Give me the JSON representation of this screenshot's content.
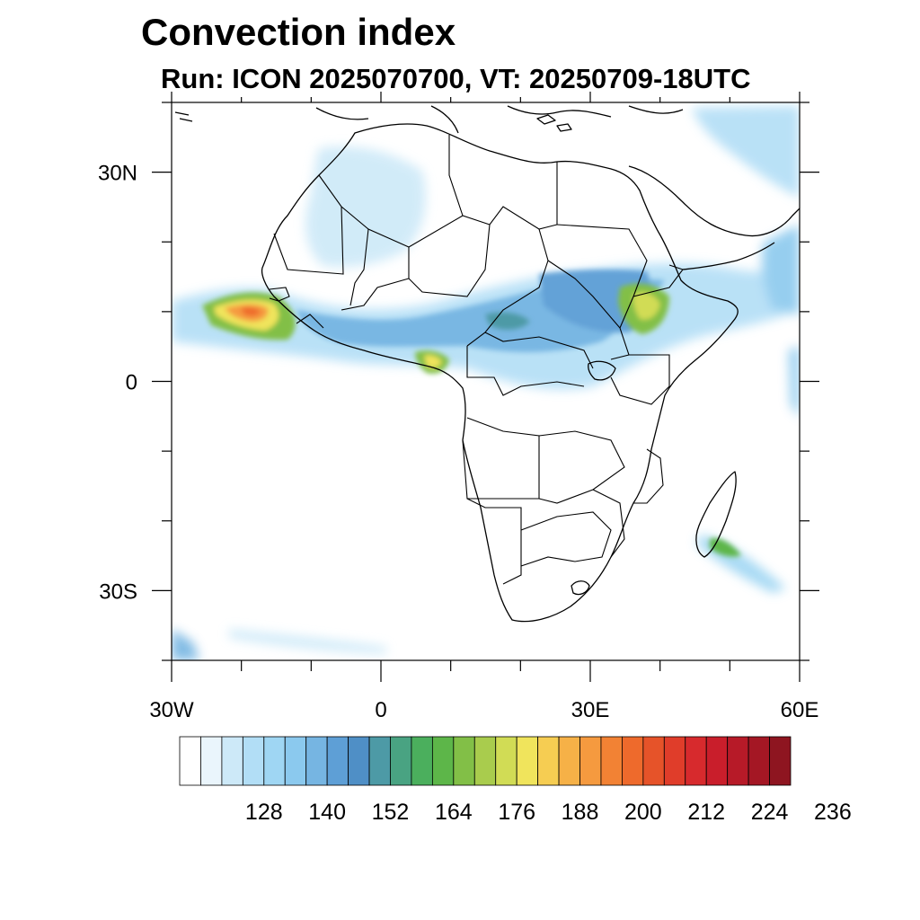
{
  "title": "Convection index",
  "subtitle": "Run: ICON 2025070700,  VT: 20250709-18UTC",
  "map": {
    "lon_range": [
      -30,
      60
    ],
    "lat_range": [
      -40,
      40
    ],
    "x_ticks": [
      {
        "value": -30,
        "label": "30W"
      },
      {
        "value": 0,
        "label": "0"
      },
      {
        "value": 30,
        "label": "30E"
      },
      {
        "value": 60,
        "label": "60E"
      }
    ],
    "y_ticks": [
      {
        "value": 30,
        "label": "30N"
      },
      {
        "value": 0,
        "label": "0"
      },
      {
        "value": -30,
        "label": "30S"
      }
    ],
    "minor_lon_step": 10,
    "minor_lat_step": 10
  },
  "colorbar": {
    "colors": [
      "#ffffff",
      "#eaf5fc",
      "#cde9f8",
      "#b2def6",
      "#9fd6f3",
      "#8bc9ee",
      "#76b5e2",
      "#5e9fd6",
      "#4f8fc6",
      "#4d9aa6",
      "#49a382",
      "#4baf5d",
      "#5db649",
      "#82bf47",
      "#a9cc4d",
      "#d1dc55",
      "#f0e45c",
      "#f6cd52",
      "#f6b147",
      "#f59a3f",
      "#f28234",
      "#ee6a2c",
      "#e65329",
      "#e03d2a",
      "#d72a2d",
      "#c91e2b",
      "#b71a28",
      "#a41724",
      "#8e1520"
    ],
    "labels": [
      "128",
      "140",
      "152",
      "164",
      "176",
      "188",
      "200",
      "212",
      "224",
      "236"
    ],
    "label_boundaries": [
      4,
      7,
      10,
      13,
      16,
      19,
      22,
      25,
      28,
      31
    ]
  }
}
